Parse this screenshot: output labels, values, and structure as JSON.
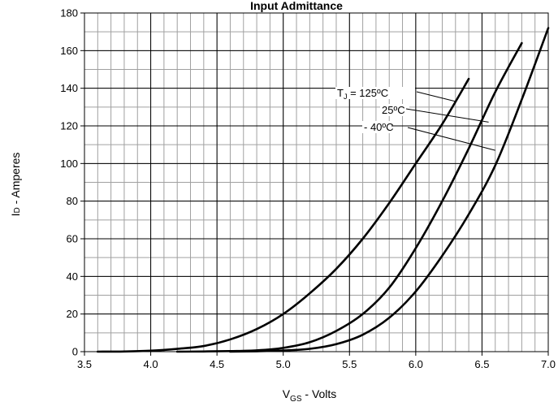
{
  "chart_data": {
    "type": "line",
    "title": "Input Admittance",
    "title_visible_text": "Input Admittance",
    "xlabel_main": "V",
    "xlabel_sub": "GS",
    "xlabel_rest": " - Volts",
    "ylabel_main": "I",
    "ylabel_sub": "D",
    "ylabel_rest": " - Amperes",
    "xlim": [
      3.5,
      7.0
    ],
    "ylim": [
      0,
      180
    ],
    "x_ticks": [
      "3.5",
      "4.0",
      "4.5",
      "5.0",
      "5.5",
      "6.0",
      "6.5",
      "7.0"
    ],
    "y_ticks": [
      "0",
      "20",
      "40",
      "60",
      "80",
      "100",
      "120",
      "140",
      "160",
      "180"
    ],
    "x_tick_values": [
      3.5,
      4.0,
      4.5,
      5.0,
      5.5,
      6.0,
      6.5,
      7.0
    ],
    "y_tick_values": [
      0,
      20,
      40,
      60,
      80,
      100,
      120,
      140,
      160,
      180
    ],
    "grid": true,
    "minor_grid": true,
    "line_color": "#000000",
    "grid_color": "#000000",
    "minor_grid_color": "#a0a0a0",
    "series": [
      {
        "name": "TJ = 125ºC",
        "x": [
          3.6,
          3.8,
          4.0,
          4.2,
          4.4,
          4.6,
          4.8,
          5.0,
          5.2,
          5.4,
          5.6,
          5.8,
          6.0,
          6.2,
          6.4
        ],
        "y": [
          0,
          0.1,
          0.5,
          1.5,
          3,
          6.5,
          12,
          20,
          31,
          44,
          60,
          79,
          100,
          121,
          145
        ]
      },
      {
        "name": "25ºC",
        "x": [
          4.2,
          4.4,
          4.6,
          4.8,
          5.0,
          5.2,
          5.4,
          5.6,
          5.8,
          6.0,
          6.2,
          6.4,
          6.6,
          6.8
        ],
        "y": [
          0,
          0.1,
          0.3,
          0.7,
          2,
          5,
          11,
          20,
          34,
          55,
          80,
          108,
          138,
          164
        ]
      },
      {
        "name": "- 40ºC",
        "x": [
          4.6,
          4.8,
          5.0,
          5.2,
          5.4,
          5.6,
          5.8,
          6.0,
          6.2,
          6.4,
          6.6,
          6.8,
          7.0
        ],
        "y": [
          0,
          0.2,
          0.6,
          1.5,
          4,
          9,
          18,
          32,
          51,
          73,
          99,
          134,
          172
        ]
      }
    ],
    "annotations": [
      {
        "label_main": "T",
        "label_sub": "J",
        "label_rest": " = 125ºC",
        "series": 0
      },
      {
        "label_main": "25ºC",
        "label_sub": "",
        "label_rest": "",
        "series": 1
      },
      {
        "label_main": "- 40ºC",
        "label_sub": "",
        "label_rest": "",
        "series": 2
      }
    ]
  }
}
